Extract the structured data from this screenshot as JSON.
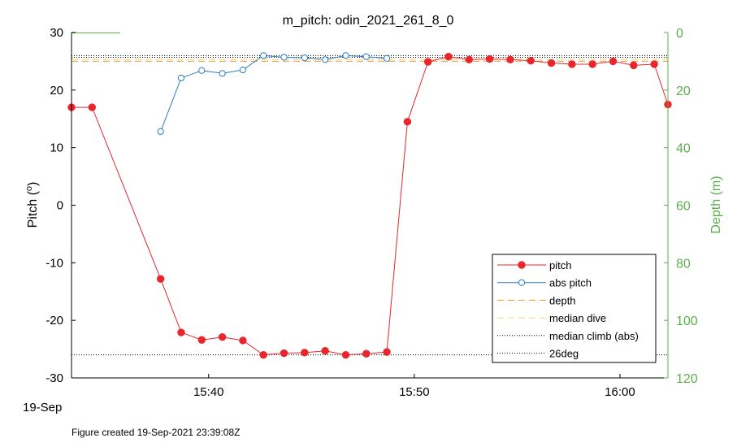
{
  "chart_data": {
    "type": "line",
    "title": "m_pitch: odin_2021_261_8_0",
    "ylabel": "Pitch (",
    "ylabel_sup": "o",
    "ylabel_close": ")",
    "y2label": "Depth (m)",
    "xlabel_date": "19-Sep",
    "footer": "Figure created 19-Sep-2021 23:39:08Z",
    "ylim": [
      -30,
      30
    ],
    "y2lim": [
      0,
      120
    ],
    "y2_reversed": true,
    "xlim": [
      "15:33:20",
      "16:02:20"
    ],
    "x_ticks": [
      "15:40",
      "15:50",
      "16:00"
    ],
    "y_ticks": [
      30,
      20,
      10,
      0,
      -10,
      -20,
      -30
    ],
    "y2_ticks": [
      0,
      20,
      40,
      60,
      80,
      100,
      120
    ],
    "grid": false,
    "legend_position": "bottom-right",
    "colors": {
      "pitch": "#e8262c",
      "abs_pitch": "#2f7bc0",
      "depth": "#f29a2e",
      "median_dive": "#e8d68a",
      "median_climb": "#000000",
      "deg26": "#000000",
      "depth_axis": "#5ab04a"
    },
    "legend": [
      "pitch",
      "abs pitch",
      "depth",
      "median dive",
      "median climb (abs)",
      "26deg"
    ],
    "series": [
      {
        "name": "pitch",
        "x": [
          "15:33:20",
          "15:34:20",
          "15:37:40",
          "15:38:40",
          "15:39:40",
          "15:40:40",
          "15:41:40",
          "15:42:40",
          "15:43:40",
          "15:44:40",
          "15:45:40",
          "15:46:40",
          "15:47:40",
          "15:48:40",
          "15:49:40",
          "15:50:40",
          "15:51:40",
          "15:52:40",
          "15:53:40",
          "15:54:40",
          "15:55:40",
          "15:56:40",
          "15:57:40",
          "15:58:40",
          "15:59:40",
          "16:00:40",
          "16:01:40",
          "16:02:20"
        ],
        "values": [
          17,
          17,
          -12.8,
          -22.1,
          -23.4,
          -22.9,
          -23.5,
          -26,
          -25.7,
          -25.6,
          -25.3,
          -26,
          -25.8,
          -25.5,
          14.5,
          24.9,
          25.8,
          25.3,
          25.4,
          25.3,
          25.1,
          24.7,
          24.5,
          24.5,
          25,
          24.3,
          24.5,
          17.5
        ]
      },
      {
        "name": "abs pitch",
        "x": [
          "15:37:40",
          "15:38:40",
          "15:39:40",
          "15:40:40",
          "15:41:40",
          "15:42:40",
          "15:43:40",
          "15:44:40",
          "15:45:40",
          "15:46:40",
          "15:47:40",
          "15:48:40"
        ],
        "values": [
          12.8,
          22.1,
          23.4,
          22.9,
          23.5,
          26,
          25.7,
          25.6,
          25.3,
          26,
          25.8,
          25.5
        ]
      },
      {
        "name": "depth",
        "x": [
          "15:33:20",
          "16:02:20"
        ],
        "values_depth": [
          10,
          10
        ]
      },
      {
        "name": "median dive",
        "x": [
          "15:33:20",
          "16:02:20"
        ],
        "values": [
          25.3,
          25.3
        ]
      },
      {
        "name": "median climb (abs)",
        "x": [
          "15:33:20",
          "16:02:20"
        ],
        "values": [
          25.7,
          25.7
        ]
      },
      {
        "name": "26deg",
        "x": [
          "15:33:20",
          "16:02:20"
        ],
        "values": [
          26,
          -26
        ]
      }
    ]
  }
}
